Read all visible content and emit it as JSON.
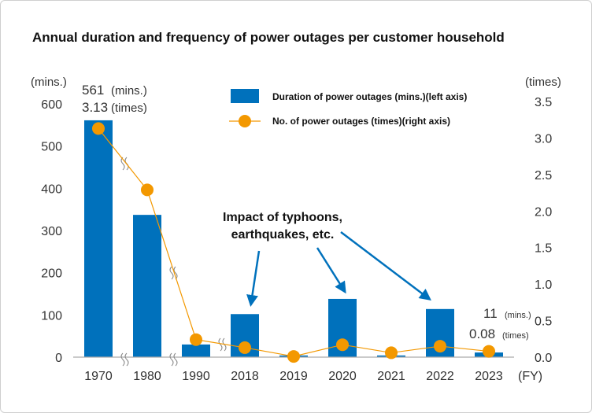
{
  "chart_data": {
    "type": "bar+line",
    "title": "Annual duration and frequency of power outages per customer household",
    "categories": [
      "1970",
      "1980",
      "1990",
      "2018",
      "2019",
      "2020",
      "2021",
      "2022",
      "2023"
    ],
    "xunit": "(FY)",
    "left_axis": {
      "unit": "(mins.)",
      "ylim": [
        0,
        600
      ],
      "ticks": [
        "0",
        "100",
        "200",
        "300",
        "400",
        "500",
        "600"
      ]
    },
    "right_axis": {
      "unit": "(times)",
      "ylim": [
        0,
        3.5
      ],
      "ticks": [
        "0.0",
        "0.5",
        "1.0",
        "1.5",
        "2.0",
        "2.5",
        "3.0",
        "3.5"
      ]
    },
    "series": [
      {
        "name": "Duration of power outages (mins.)(left axis)",
        "type": "bar",
        "axis": "left",
        "color": "#0071bc",
        "values": [
          561,
          337,
          30,
          102,
          4,
          138,
          4,
          114,
          11
        ]
      },
      {
        "name": "No. of power outages (times)(right axis)",
        "type": "line",
        "axis": "right",
        "color": "#f39800",
        "values": [
          3.13,
          2.29,
          0.24,
          0.13,
          0.01,
          0.17,
          0.06,
          0.15,
          0.08
        ]
      }
    ],
    "grid": false,
    "legend": "top-center",
    "annotations": {
      "first": {
        "duration": "561",
        "duration_unit": "(mins.)",
        "count": "3.13",
        "count_unit": "(times)"
      },
      "last": {
        "duration": "11",
        "duration_unit": "(mins.)",
        "count": "0.08",
        "count_unit": "(times)"
      },
      "callout": [
        "Impact of typhoons,",
        "earthquakes, etc."
      ]
    },
    "axis_breaks": true
  }
}
